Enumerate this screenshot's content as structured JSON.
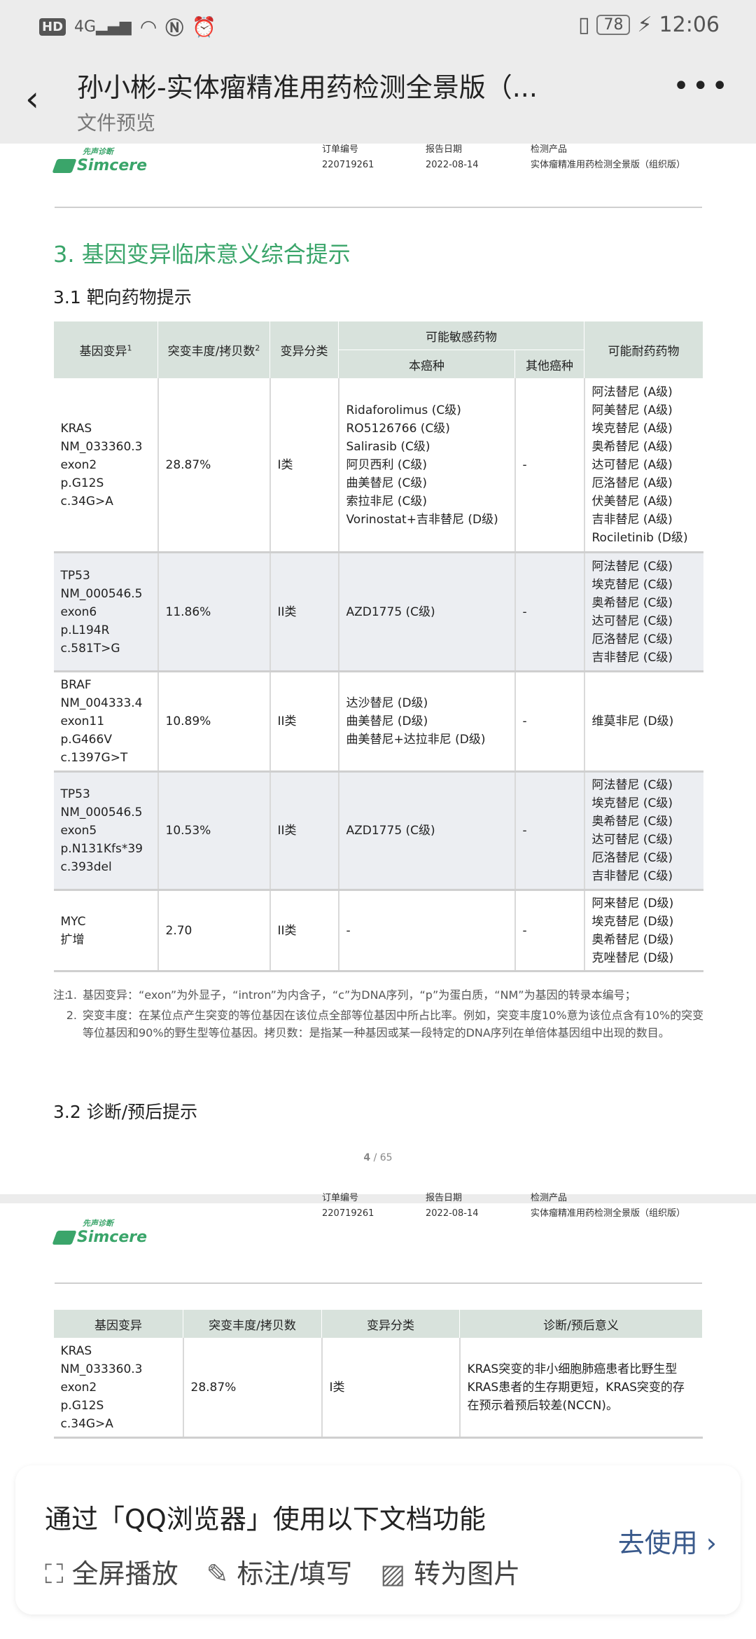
{
  "status_bar": {
    "left_icons": [
      "hd-icon",
      "4g-signal-icon",
      "wifi-icon",
      "nfc-icon",
      "alarm-icon"
    ],
    "hd": "HD",
    "net": "4G",
    "battery": "78",
    "time": "12:06"
  },
  "header": {
    "title": "孙小彬-实体瘤精准用药检测全景版（...",
    "subtitle": "文件预览",
    "more": "•••"
  },
  "doc_header": {
    "logo_cn": "先声诊断",
    "logo_en": "Simcere",
    "order_label": "订单编号",
    "order_value": "220719261",
    "date_label": "报告日期",
    "date_value": "2022-08-14",
    "product_label": "检测产品",
    "product_value": "实体瘤精准用药检测全景版（组织版）"
  },
  "section3": {
    "title": "3. 基因变异临床意义综合提示",
    "sub1": "3.1 靶向药物提示",
    "sub2": "3.2 诊断/预后提示"
  },
  "table1": {
    "headers": {
      "gene": "基因变异",
      "gene_sup": "1",
      "freq": "突变丰度/拷贝数",
      "freq_sup": "2",
      "class": "变异分类",
      "sensitive": "可能敏感药物",
      "this": "本癌种",
      "other": "其他癌种",
      "resist": "可能耐药药物"
    },
    "rows": [
      {
        "gene": [
          "KRAS",
          "NM_033360.3",
          "exon2",
          "p.G12S",
          "c.34G>A"
        ],
        "freq": "28.87%",
        "class": "I类",
        "this": [
          "Ridaforolimus (C级)",
          "RO5126766 (C级)",
          "Salirasib (C级)",
          "阿贝西利 (C级)",
          "曲美替尼 (C级)",
          "索拉非尼 (C级)",
          "Vorinostat+吉非替尼 (D级)"
        ],
        "other": "-",
        "resist": [
          "阿法替尼 (A级)",
          "阿美替尼 (A级)",
          "埃克替尼 (A级)",
          "奥希替尼 (A级)",
          "达可替尼 (A级)",
          "厄洛替尼 (A级)",
          "伏美替尼 (A级)",
          "吉非替尼 (A级)",
          "Rociletinib (D级)"
        ]
      },
      {
        "gene": [
          "TP53",
          "NM_000546.5",
          "exon6",
          "p.L194R",
          "c.581T>G"
        ],
        "freq": "11.86%",
        "class": "II类",
        "this": [
          "AZD1775 (C级)"
        ],
        "other": "-",
        "resist": [
          "阿法替尼 (C级)",
          "埃克替尼 (C级)",
          "奥希替尼 (C级)",
          "达可替尼 (C级)",
          "厄洛替尼 (C级)",
          "吉非替尼 (C级)"
        ]
      },
      {
        "gene": [
          "BRAF",
          "NM_004333.4",
          "exon11",
          "p.G466V",
          "c.1397G>T"
        ],
        "freq": "10.89%",
        "class": "II类",
        "this": [
          "达沙替尼 (D级)",
          "曲美替尼 (D级)",
          "曲美替尼+达拉非尼 (D级)"
        ],
        "other": "-",
        "resist": [
          "维莫非尼 (D级)"
        ]
      },
      {
        "gene": [
          "TP53",
          "NM_000546.5",
          "exon5",
          "p.N131Kfs*39",
          "c.393del"
        ],
        "freq": "10.53%",
        "class": "II类",
        "this": [
          "AZD1775 (C级)"
        ],
        "other": "-",
        "resist": [
          "阿法替尼 (C级)",
          "埃克替尼 (C级)",
          "奥希替尼 (C级)",
          "达可替尼 (C级)",
          "厄洛替尼 (C级)",
          "吉非替尼 (C级)"
        ]
      },
      {
        "gene": [
          "MYC",
          "扩增"
        ],
        "freq": "2.70",
        "class": "II类",
        "this": [
          "-"
        ],
        "other": "-",
        "resist": [
          "阿来替尼 (D级)",
          "埃克替尼 (D级)",
          "奥希替尼 (D级)",
          "克唑替尼 (D级)"
        ]
      }
    ]
  },
  "notes": {
    "label": "注:",
    "items": [
      {
        "n": "1.",
        "text": "基因变异：“exon”为外显子，“intron”为内含子，“c”为DNA序列，“p”为蛋白质，“NM”为基因的转录本编号；"
      },
      {
        "n": "2.",
        "text": "突变丰度：在某位点产生突变的等位基因在该位点全部等位基因中所占比率。例如，突变丰度10%意为该位点含有10%的突变等位基因和90%的野生型等位基因。拷贝数：是指某一种基因或某一段特定的DNA序列在单倍体基因组中出现的数目。"
      }
    ]
  },
  "page_number": {
    "current": "4",
    "total": "/ 65"
  },
  "table2": {
    "headers": [
      "基因变异",
      "突变丰度/拷贝数",
      "变异分类",
      "诊断/预后意义"
    ],
    "rows": [
      {
        "gene": [
          "KRAS",
          "NM_033360.3",
          "exon2",
          "p.G12S",
          "c.34G>A"
        ],
        "freq": "28.87%",
        "class": "I类",
        "meaning": "KRAS突变的非小细胞肺癌患者比野生型KRAS患者的生存期更短，KRAS突变的存在预示着预后较差(NCCN)。"
      }
    ]
  },
  "banner": {
    "text": "通过「QQ浏览器」使用以下文档功能",
    "actions": [
      {
        "icon": "fullscreen-icon",
        "glyph": "⛶",
        "label": "全屏播放"
      },
      {
        "icon": "edit-icon",
        "glyph": "✎",
        "label": "标注/填写"
      },
      {
        "icon": "image-icon",
        "glyph": "▨",
        "label": "转为图片"
      }
    ],
    "cta": "去使用 ›"
  },
  "colors": {
    "accent_green": "#3aa56a",
    "table_header": "#d8e2dc",
    "cta_blue": "#3a5a8c"
  }
}
